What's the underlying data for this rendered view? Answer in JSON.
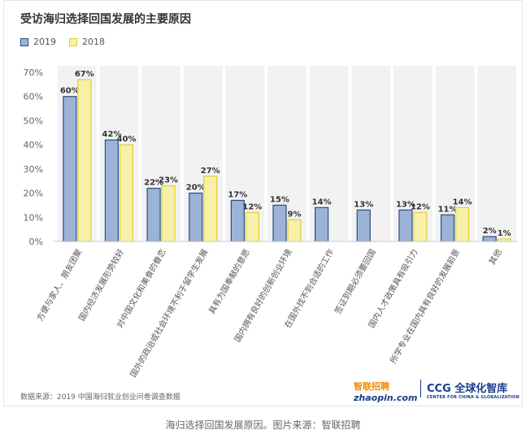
{
  "title": "受访海归选择回国发展的主要原因",
  "source_note": "数据来源：2019 中国海归就业创业问卷调查数据",
  "caption": "海归选择回国发展原因。图片来源：智联招聘",
  "logos": {
    "zhaopin_cn": "智联招聘",
    "zhaopin_en": "zhaopin.com",
    "ccg_main": "CCG 全球化智库",
    "ccg_sub": "CENTER FOR CHINA & GLOBALIZATION"
  },
  "colors": {
    "series_2019": "#9bb3d6",
    "series_2019_stroke": "#2e4b80",
    "series_2018": "#f6f0a8",
    "series_2018_stroke": "#e2cf36",
    "column_bg": "#f2f2f2"
  },
  "chart_data": {
    "type": "bar",
    "title": "受访海归选择回国发展的主要原因",
    "categories": [
      "方便与家人、朋友团聚",
      "国内经济发展形势较好",
      "对中国文化和美食的眷恋",
      "国外的政治或社会环境不利于留学生发展",
      "具有为国奉献的意愿",
      "国内拥有良好的创新创业环境",
      "在国外找不到合适的工作",
      "签证到期必须要回国",
      "国内人才政策具有吸引力",
      "所学专业在国内具有良好的发展前景",
      "其他"
    ],
    "series": [
      {
        "name": "2019",
        "values": [
          60,
          42,
          22,
          20,
          17,
          15,
          14,
          13,
          13,
          11,
          2
        ]
      },
      {
        "name": "2018",
        "values": [
          67,
          40,
          23,
          27,
          12,
          9,
          null,
          null,
          12,
          14,
          1
        ]
      }
    ],
    "ylim": [
      0,
      70
    ],
    "yticks": [
      "0%",
      "10%",
      "20%",
      "30%",
      "40%",
      "50%",
      "60%",
      "70%"
    ],
    "value_suffix": "%",
    "legend_position": "top-left",
    "grid": false
  }
}
